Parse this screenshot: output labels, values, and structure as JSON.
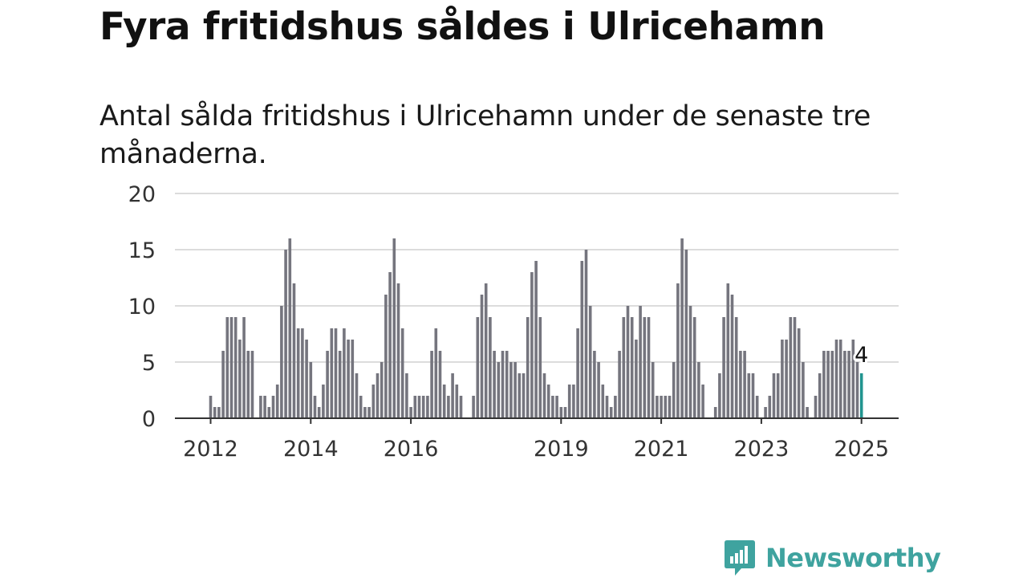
{
  "header": {
    "title": "Fyra fritidshus såldes i Ulricehamn",
    "subtitle": "Antal sålda fritidshus i Ulricehamn under de senaste tre månaderna."
  },
  "brand": {
    "name": "Newsworthy",
    "icon": "newsworthy-logo-icon",
    "color": "#3fa39f"
  },
  "colors": {
    "bar": "#75757e",
    "highlight": "#21948f",
    "grid": "#dcdcdc",
    "axis": "#333333"
  },
  "chart_data": {
    "type": "bar",
    "title": "",
    "xlabel": "",
    "ylabel": "",
    "ylim": [
      0,
      20
    ],
    "yticks": [
      0,
      5,
      10,
      15,
      20
    ],
    "xticks": [
      "2012",
      "2014",
      "2016",
      "2019",
      "2021",
      "2023",
      "2025"
    ],
    "xtick_indices": [
      0,
      24,
      48,
      84,
      108,
      132,
      156
    ],
    "grid": "horizontal",
    "start": "2012-01",
    "frequency": "monthly",
    "values": [
      2,
      1,
      1,
      6,
      9,
      9,
      9,
      7,
      9,
      6,
      6,
      0,
      2,
      2,
      1,
      2,
      3,
      10,
      15,
      16,
      12,
      8,
      8,
      7,
      5,
      2,
      1,
      3,
      6,
      8,
      8,
      6,
      8,
      7,
      7,
      4,
      2,
      1,
      1,
      3,
      4,
      5,
      11,
      13,
      16,
      12,
      8,
      4,
      1,
      2,
      2,
      2,
      2,
      6,
      8,
      6,
      3,
      2,
      4,
      3,
      2,
      0,
      0,
      2,
      9,
      11,
      12,
      9,
      6,
      5,
      6,
      6,
      5,
      5,
      4,
      4,
      9,
      13,
      14,
      9,
      4,
      3,
      2,
      2,
      1,
      1,
      3,
      3,
      8,
      14,
      15,
      10,
      6,
      5,
      3,
      2,
      1,
      2,
      6,
      9,
      10,
      9,
      7,
      10,
      9,
      9,
      5,
      2,
      2,
      2,
      2,
      5,
      12,
      16,
      15,
      10,
      9,
      5,
      3,
      0,
      0,
      1,
      4,
      9,
      12,
      11,
      9,
      6,
      6,
      4,
      4,
      2,
      0,
      1,
      2,
      4,
      4,
      7,
      7,
      9,
      9,
      8,
      5,
      1,
      0,
      2,
      4,
      6,
      6,
      6,
      7,
      7,
      6,
      6,
      7,
      5,
      4
    ],
    "annotations": [
      {
        "index": 156,
        "label": "4"
      }
    ]
  }
}
